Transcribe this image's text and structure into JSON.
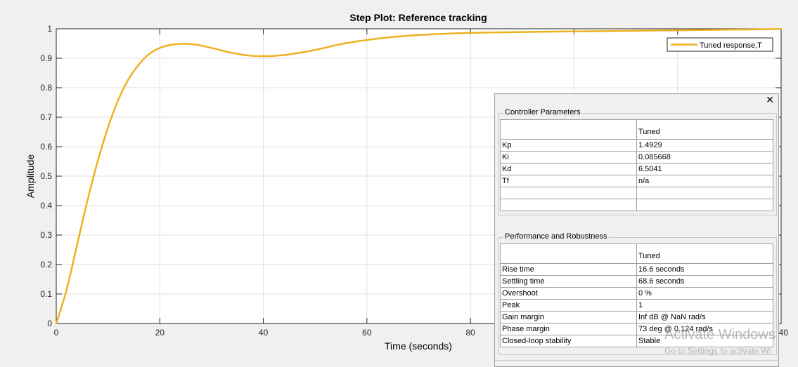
{
  "chart_data": {
    "type": "line",
    "title": "Step Plot: Reference tracking",
    "xlabel": "Time (seconds)",
    "ylabel": "Amplitude",
    "xlim": [
      0,
      140
    ],
    "ylim": [
      0,
      1
    ],
    "xticks": [
      "0",
      "20",
      "40",
      "60",
      "80",
      "",
      "140"
    ],
    "xtick_values": [
      0,
      20,
      40,
      60,
      80,
      120,
      140
    ],
    "yticks": [
      "0",
      "0.1",
      "0.2",
      "0.3",
      "0.4",
      "0.5",
      "0.6",
      "0.7",
      "0.8",
      "0.9",
      "1"
    ],
    "ytick_values": [
      0,
      0.1,
      0.2,
      0.3,
      0.4,
      0.5,
      0.6,
      0.7,
      0.8,
      0.9,
      1
    ],
    "grid": true,
    "legend": "top-right",
    "series": [
      {
        "name": "Tuned response,T",
        "color": "#EDB120",
        "x": [
          0,
          2,
          4,
          6,
          8,
          10,
          12,
          14,
          16,
          18,
          20,
          22,
          24,
          26,
          28,
          30,
          32,
          34,
          36,
          38,
          40,
          42,
          45,
          50,
          55,
          60,
          65,
          70,
          80,
          90,
          100,
          110,
          120,
          130,
          140
        ],
        "y": [
          0,
          0.115,
          0.265,
          0.415,
          0.55,
          0.665,
          0.76,
          0.83,
          0.88,
          0.915,
          0.935,
          0.945,
          0.949,
          0.948,
          0.943,
          0.935,
          0.926,
          0.918,
          0.912,
          0.908,
          0.907,
          0.908,
          0.913,
          0.928,
          0.948,
          0.962,
          0.972,
          0.979,
          0.986,
          0.989,
          0.991,
          0.993,
          0.995,
          0.997,
          0.999
        ]
      }
    ]
  },
  "panel": {
    "close_icon": "close-icon",
    "controller": {
      "title": "Controller Parameters",
      "header": [
        "",
        "Tuned"
      ],
      "rows": [
        [
          "Kp",
          "1.4929"
        ],
        [
          "Ki",
          "0.085668"
        ],
        [
          "Kd",
          "6.5041"
        ],
        [
          "Tf",
          "n/a"
        ],
        [
          "",
          ""
        ],
        [
          "",
          ""
        ]
      ]
    },
    "performance": {
      "title": "Performance and Robustness",
      "header": [
        "",
        "Tuned"
      ],
      "rows": [
        [
          "Rise time",
          "16.6 seconds"
        ],
        [
          "Settling time",
          "68.6 seconds"
        ],
        [
          "Overshoot",
          "0 %"
        ],
        [
          "Peak",
          "1"
        ],
        [
          "Gain margin",
          "Inf dB @ NaN rad/s"
        ],
        [
          "Phase margin",
          "73 deg @ 0.124 rad/s"
        ],
        [
          "Closed-loop stability",
          "Stable"
        ]
      ]
    }
  },
  "watermark": {
    "line1": "Activate Windows",
    "line2": "Go to Settings to activate Wi"
  }
}
